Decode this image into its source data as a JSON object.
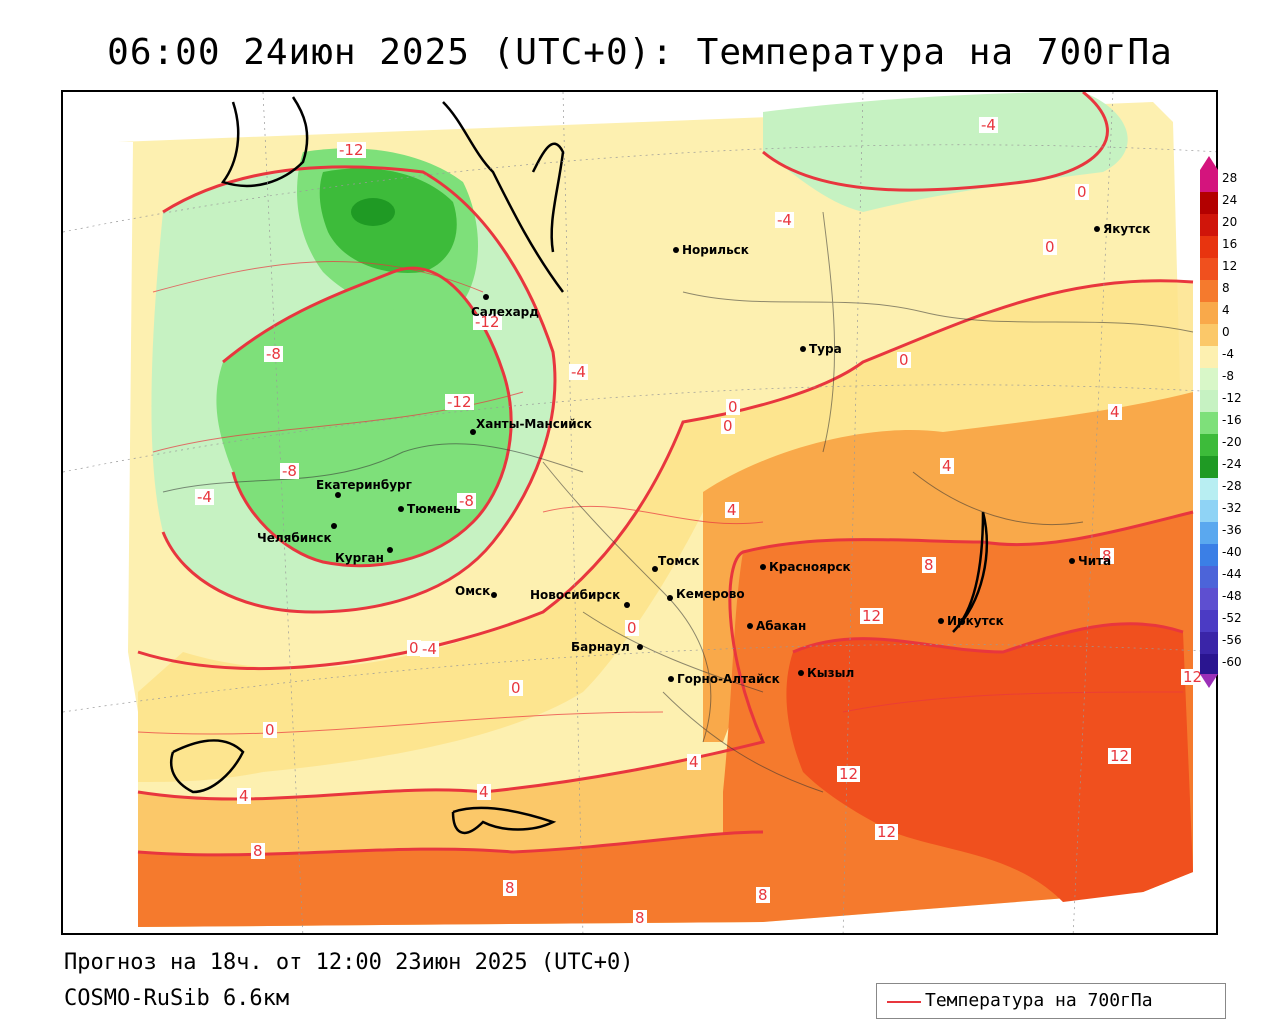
{
  "title": "06:00 24июн 2025 (UTC+0): Температура на 700гПа",
  "forecast_line": "Прогноз на 18ч. от 12:00 23июн 2025 (UTC+0)",
  "model_line": "COSMO-RuSib 6.6км",
  "legend": {
    "label": "Температура на 700гПа",
    "color": "#e8363e"
  },
  "colorbar": {
    "ticks": [
      "28",
      "24",
      "20",
      "16",
      "12",
      "8",
      "4",
      "0",
      "-4",
      "-8",
      "-12",
      "-16",
      "-20",
      "-24",
      "-28",
      "-32",
      "-36",
      "-40",
      "-44",
      "-48",
      "-52",
      "-56",
      "-60"
    ]
  },
  "cities": [
    {
      "name": "Норильск"
    },
    {
      "name": "Салехард"
    },
    {
      "name": "Якутск"
    },
    {
      "name": "Тура"
    },
    {
      "name": "Ханты-Мансийск"
    },
    {
      "name": "Екатеринбург"
    },
    {
      "name": "Тюмень"
    },
    {
      "name": "Челябинск"
    },
    {
      "name": "Курган"
    },
    {
      "name": "Омск"
    },
    {
      "name": "Томск"
    },
    {
      "name": "Новосибирск"
    },
    {
      "name": "Кемерово"
    },
    {
      "name": "Красноярск"
    },
    {
      "name": "Барнаул"
    },
    {
      "name": "Абакан"
    },
    {
      "name": "Горно-Алтайск"
    },
    {
      "name": "Кызыл"
    },
    {
      "name": "Иркутск"
    },
    {
      "name": "Чита"
    }
  ],
  "contour_labels": [
    "-12",
    "-4",
    "-4",
    "0",
    "0",
    "0",
    "-12",
    "-8",
    "-4",
    "-12",
    "0",
    "0",
    "4",
    "-8",
    "-8",
    "-4",
    "4",
    "8",
    "8",
    "12",
    "12",
    "12",
    "12",
    "12",
    "0",
    "0",
    "0",
    "4",
    "4",
    "4",
    "8",
    "8",
    "8",
    "8",
    "0",
    "4",
    "-4"
  ]
}
